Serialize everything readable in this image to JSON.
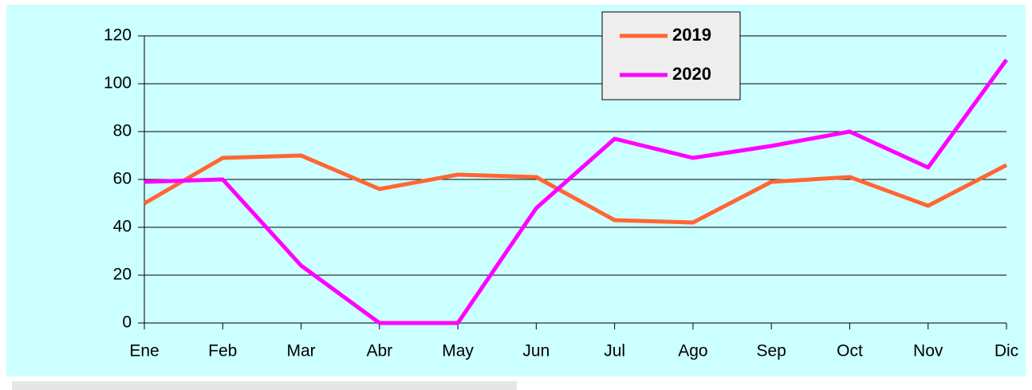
{
  "chart_data": {
    "type": "line",
    "categories": [
      "Ene",
      "Feb",
      "Mar",
      "Abr",
      "May",
      "Jun",
      "Jul",
      "Ago",
      "Sep",
      "Oct",
      "Nov",
      "Dic"
    ],
    "series": [
      {
        "name": "2019",
        "color": "#ff6633",
        "values": [
          50,
          69,
          70,
          56,
          62,
          61,
          43,
          42,
          59,
          61,
          49,
          66
        ]
      },
      {
        "name": "2020",
        "color": "#ff00ff",
        "values": [
          59,
          60,
          24,
          0,
          0,
          48,
          77,
          69,
          74,
          80,
          65,
          110
        ]
      }
    ],
    "ylim": [
      0,
      120
    ],
    "yticks": [
      0,
      20,
      40,
      60,
      80,
      100,
      120
    ],
    "grid": true,
    "legend": "top"
  }
}
